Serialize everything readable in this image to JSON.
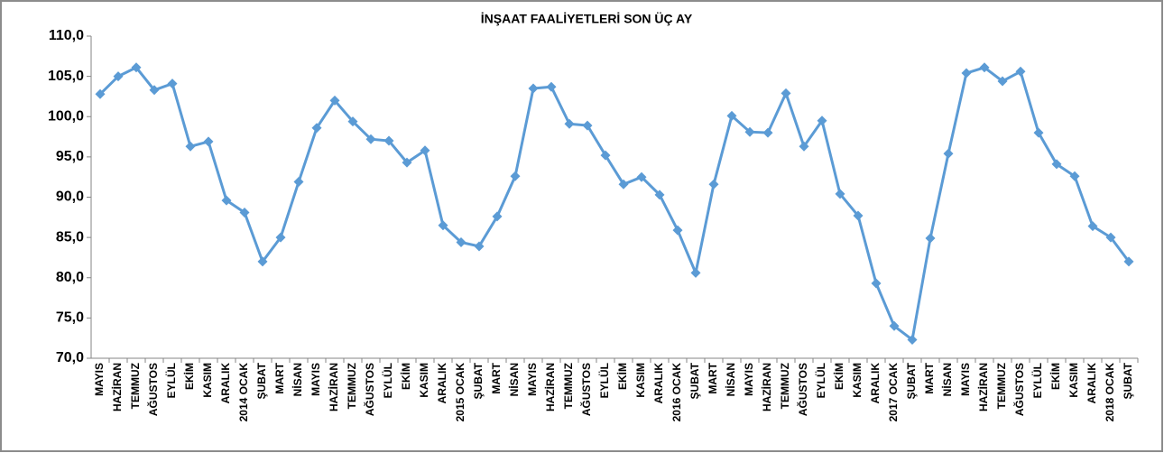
{
  "chart_data": {
    "type": "line",
    "title": "İNŞAAT FAALİYETLERİ SON ÜÇ AY",
    "categories": [
      "MAYIS",
      "HAZİRAN",
      "TEMMUZ",
      "AĞUSTOS",
      "EYLÜL",
      "EKİM",
      "KASIM",
      "ARALIK",
      "2014 OCAK",
      "ŞUBAT",
      "MART",
      "NİSAN",
      "MAYIS",
      "HAZİRAN",
      "TEMMUZ",
      "AĞUSTOS",
      "EYLÜL",
      "EKİM",
      "KASIM",
      "ARALIK",
      "2015 OCAK",
      "ŞUBAT",
      "MART",
      "NİSAN",
      "MAYIS",
      "HAZİRAN",
      "TEMMUZ",
      "AĞUSTOS",
      "EYLÜL",
      "EKİM",
      "KASIM",
      "ARALIK",
      "2016 OCAK",
      "ŞUBAT",
      "MART",
      "NİSAN",
      "MAYIS",
      "HAZİRAN",
      "TEMMUZ",
      "AĞUSTOS",
      "EYLÜL",
      "EKİM",
      "KASIM",
      "ARALIK",
      "2017 OCAK",
      "ŞUBAT",
      "MART",
      "NİSAN",
      "MAYIS",
      "HAZİRAN",
      "TEMMUZ",
      "AĞUSTOS",
      "EYLÜL",
      "EKİM",
      "KASIM",
      "ARALIK",
      "2018 OCAK",
      "ŞUBAT"
    ],
    "values": [
      102.8,
      105.0,
      106.1,
      103.3,
      104.1,
      96.3,
      96.9,
      89.6,
      88.1,
      82.0,
      85.0,
      91.9,
      98.6,
      102.0,
      99.4,
      97.2,
      97.0,
      94.3,
      95.8,
      86.5,
      84.4,
      83.9,
      87.6,
      92.6,
      103.5,
      103.7,
      99.1,
      98.9,
      95.2,
      91.6,
      92.5,
      90.3,
      85.9,
      80.6,
      91.6,
      100.1,
      98.1,
      98.0,
      102.9,
      96.3,
      99.5,
      90.4,
      87.7,
      79.3,
      74.0,
      72.3,
      84.9,
      95.4,
      105.4,
      106.1,
      104.4,
      105.6,
      98.0,
      94.1,
      92.6,
      86.4,
      85.0,
      82.0
    ],
    "color": "#5b9bd5",
    "ylim": [
      70,
      110
    ],
    "yticks": [
      {
        "value": 70,
        "label": "70,0"
      },
      {
        "value": 75,
        "label": "75,0"
      },
      {
        "value": 80,
        "label": "80,0"
      },
      {
        "value": 85,
        "label": "85,0"
      },
      {
        "value": 90,
        "label": "90,0"
      },
      {
        "value": 95,
        "label": "95,0"
      },
      {
        "value": 100,
        "label": "100,0"
      },
      {
        "value": 105,
        "label": "105,0"
      },
      {
        "value": 110,
        "label": "110,0"
      }
    ],
    "grid": false
  }
}
